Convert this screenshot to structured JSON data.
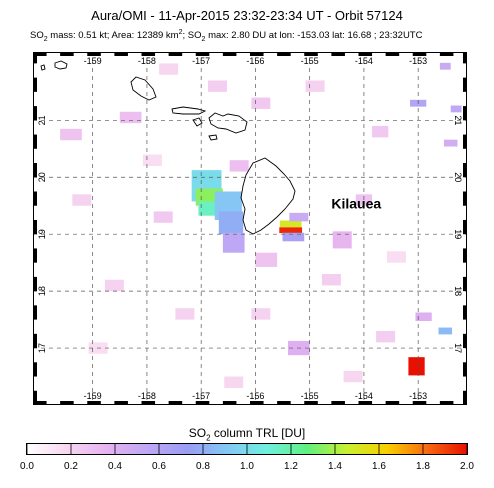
{
  "title": "Aura/OMI - 11-Apr-2015 23:32-23:34 UT - Orbit 57124",
  "subtitle": {
    "so2_mass_prefix": "SO",
    "so2_mass_sub": "2",
    "so2_mass_text": " mass: 0.51 kt; Area: 12389 km",
    "area_sup": "2",
    "so2_max_prefix": "; SO",
    "so2_max_sub": "2",
    "so2_max_text": " max: 2.80 DU at lon: -153.03 lat: 16.68 ; 23:32UTC"
  },
  "map": {
    "lon_ticks": [
      "-159",
      "-158",
      "-157",
      "-156",
      "-155",
      "-154",
      "-153"
    ],
    "lon_values": [
      -159,
      -158,
      -157,
      -156,
      -155,
      -154,
      -153
    ],
    "lat_ticks": [
      "21",
      "20",
      "19",
      "18",
      "17"
    ],
    "lat_values": [
      21,
      20,
      19,
      18,
      17
    ],
    "lon_range": [
      -160.1,
      -152.1
    ],
    "lat_range": [
      16.0,
      22.2
    ],
    "grid": true,
    "place_label": "Kilauea",
    "place_label_lon": -154.6,
    "place_label_lat": 19.45,
    "colors": {
      "grid": "#555555",
      "coast": "#000000"
    },
    "pixels": [
      {
        "lon": -156.9,
        "lat": 19.85,
        "w": 0.55,
        "h": 0.55,
        "v": 1.0
      },
      {
        "lon": -156.85,
        "lat": 19.65,
        "w": 0.5,
        "h": 0.3,
        "v": 1.35
      },
      {
        "lon": -156.8,
        "lat": 19.45,
        "w": 0.5,
        "h": 0.25,
        "v": 1.15
      },
      {
        "lon": -156.5,
        "lat": 19.5,
        "w": 0.5,
        "h": 0.5,
        "v": 0.9
      },
      {
        "lon": -156.45,
        "lat": 19.2,
        "w": 0.45,
        "h": 0.4,
        "v": 0.8
      },
      {
        "lon": -156.4,
        "lat": 18.85,
        "w": 0.4,
        "h": 0.35,
        "v": 0.55
      },
      {
        "lon": -155.35,
        "lat": 19.18,
        "w": 0.4,
        "h": 0.12,
        "v": 1.5
      },
      {
        "lon": -155.35,
        "lat": 19.07,
        "w": 0.42,
        "h": 0.1,
        "v": 1.95
      },
      {
        "lon": -155.3,
        "lat": 18.95,
        "w": 0.4,
        "h": 0.15,
        "v": 0.65
      },
      {
        "lon": -155.2,
        "lat": 19.3,
        "w": 0.35,
        "h": 0.15,
        "v": 0.5
      },
      {
        "lon": -153.03,
        "lat": 16.68,
        "w": 0.3,
        "h": 0.32,
        "v": 2.0
      },
      {
        "lon": -152.5,
        "lat": 17.3,
        "w": 0.25,
        "h": 0.12,
        "v": 0.85
      },
      {
        "lon": -153.0,
        "lat": 21.3,
        "w": 0.3,
        "h": 0.12,
        "v": 0.6
      },
      {
        "lon": -152.3,
        "lat": 21.2,
        "w": 0.2,
        "h": 0.12,
        "v": 0.55
      },
      {
        "lon": -152.5,
        "lat": 21.95,
        "w": 0.2,
        "h": 0.12,
        "v": 0.5
      },
      {
        "lon": -152.4,
        "lat": 20.6,
        "w": 0.25,
        "h": 0.12,
        "v": 0.45
      },
      {
        "lon": -152.9,
        "lat": 17.55,
        "w": 0.3,
        "h": 0.15,
        "v": 0.4
      },
      {
        "lon": -155.2,
        "lat": 17.0,
        "w": 0.4,
        "h": 0.25,
        "v": 0.4
      },
      {
        "lon": -154.4,
        "lat": 18.9,
        "w": 0.35,
        "h": 0.3,
        "v": 0.35
      },
      {
        "lon": -156.3,
        "lat": 20.2,
        "w": 0.35,
        "h": 0.2,
        "v": 0.3
      },
      {
        "lon": -158.3,
        "lat": 21.05,
        "w": 0.4,
        "h": 0.2,
        "v": 0.3
      },
      {
        "lon": -159.4,
        "lat": 20.75,
        "w": 0.4,
        "h": 0.2,
        "v": 0.28
      },
      {
        "lon": -155.8,
        "lat": 18.55,
        "w": 0.4,
        "h": 0.25,
        "v": 0.28
      },
      {
        "lon": -154.0,
        "lat": 19.6,
        "w": 0.3,
        "h": 0.2,
        "v": 0.28
      },
      {
        "lon": -157.7,
        "lat": 19.3,
        "w": 0.35,
        "h": 0.2,
        "v": 0.25
      },
      {
        "lon": -155.9,
        "lat": 21.3,
        "w": 0.35,
        "h": 0.2,
        "v": 0.25
      },
      {
        "lon": -153.7,
        "lat": 20.8,
        "w": 0.3,
        "h": 0.2,
        "v": 0.25
      },
      {
        "lon": -156.7,
        "lat": 21.6,
        "w": 0.35,
        "h": 0.2,
        "v": 0.22
      },
      {
        "lon": -154.6,
        "lat": 18.2,
        "w": 0.35,
        "h": 0.2,
        "v": 0.22
      },
      {
        "lon": -153.6,
        "lat": 17.2,
        "w": 0.35,
        "h": 0.2,
        "v": 0.22
      },
      {
        "lon": -155.9,
        "lat": 17.6,
        "w": 0.35,
        "h": 0.2,
        "v": 0.2
      },
      {
        "lon": -158.6,
        "lat": 18.1,
        "w": 0.35,
        "h": 0.2,
        "v": 0.2
      },
      {
        "lon": -157.3,
        "lat": 17.6,
        "w": 0.35,
        "h": 0.2,
        "v": 0.2
      },
      {
        "lon": -154.9,
        "lat": 21.6,
        "w": 0.35,
        "h": 0.2,
        "v": 0.2
      },
      {
        "lon": -159.2,
        "lat": 19.6,
        "w": 0.35,
        "h": 0.2,
        "v": 0.2
      },
      {
        "lon": -157.6,
        "lat": 21.9,
        "w": 0.35,
        "h": 0.2,
        "v": 0.18
      },
      {
        "lon": -154.2,
        "lat": 16.5,
        "w": 0.35,
        "h": 0.2,
        "v": 0.18
      },
      {
        "lon": -156.4,
        "lat": 16.4,
        "w": 0.35,
        "h": 0.2,
        "v": 0.18
      },
      {
        "lon": -158.9,
        "lat": 17.0,
        "w": 0.35,
        "h": 0.2,
        "v": 0.15
      },
      {
        "lon": -153.4,
        "lat": 18.6,
        "w": 0.35,
        "h": 0.2,
        "v": 0.15
      },
      {
        "lon": -157.9,
        "lat": 20.3,
        "w": 0.35,
        "h": 0.2,
        "v": 0.15
      }
    ]
  },
  "colorbar": {
    "title_prefix": "SO",
    "title_sub": "2",
    "title_text": " column TRL [DU]",
    "labels": [
      "0.0",
      "0.2",
      "0.4",
      "0.6",
      "0.8",
      "1.0",
      "1.2",
      "1.4",
      "1.6",
      "1.8",
      "2.0"
    ],
    "min": 0.0,
    "max": 2.0,
    "stops": [
      "#ffffff",
      "#f7d6f0",
      "#e6b2f0",
      "#bfa8f5",
      "#9a9cf5",
      "#84c8f5",
      "#70f0e0",
      "#60f080",
      "#c8f030",
      "#f8d000",
      "#f86a10",
      "#e81000"
    ]
  }
}
